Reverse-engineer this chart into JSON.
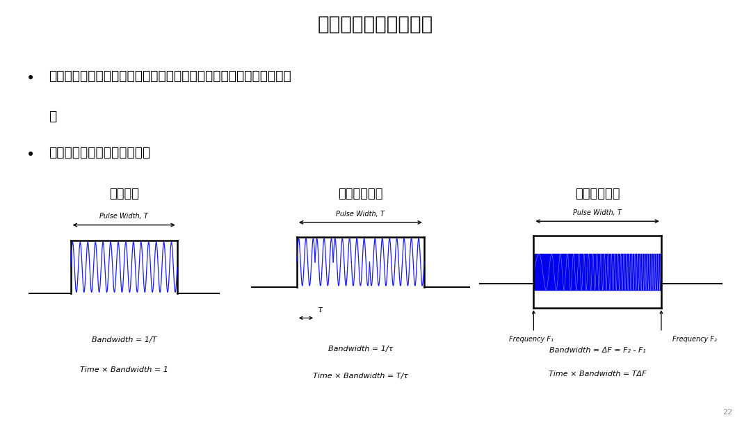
{
  "title": "脉冲的频率和相位调制",
  "bullet1_line1": "对长脉冲进行调制，提高时间带宽积，就可以获得短脉冲所具有的分辨",
  "bullet1_line2": "率",
  "bullet2": "回波信号一定要进行脉压处理",
  "sub1_title": "方形脉冲",
  "sub2_title": "二相编码波形",
  "sub3_title": "线性调频波形",
  "pulse_width_label": "Pulse Width, T",
  "bw1": "Bandwidth = 1/T",
  "tbw1": "Time × Bandwidth = 1",
  "bw2": "Bandwidth = 1/τ",
  "tbw2": "Time × Bandwidth = T/τ",
  "freq_f1": "Frequency F₁",
  "freq_f2": "Frequency F₂",
  "bw3": "Bandwidth = ΔF = F₂ - F₁",
  "tbw3": "Time × Bandwidth = TΔF",
  "tau_label": "τ",
  "bg_color": "#ffffff",
  "line_color_1": "#1a1aff",
  "line_color_2": "#1a1aff",
  "fill_color": "#0000ee",
  "text_color": "#000000",
  "page_number": "22"
}
